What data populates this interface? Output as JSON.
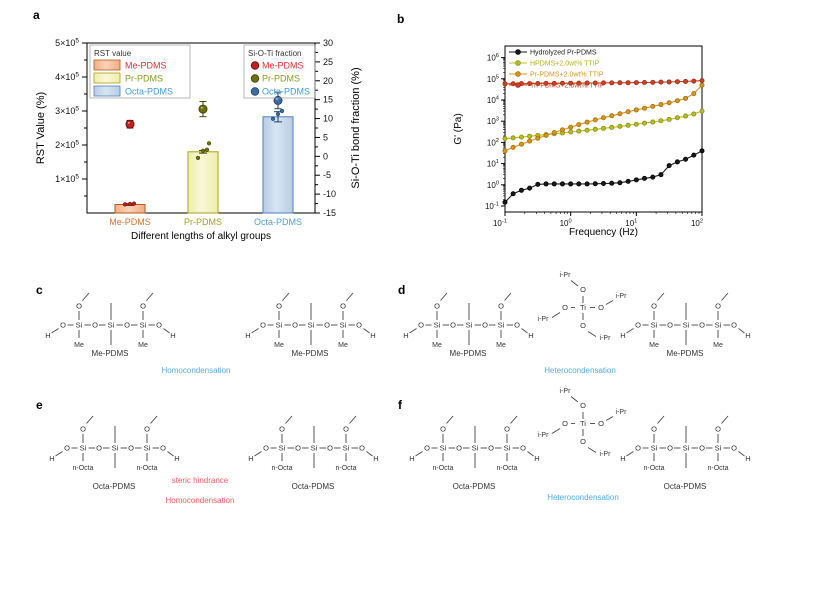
{
  "figure": {
    "panel_labels": {
      "a": "a",
      "b": "b",
      "c": "c",
      "d": "d",
      "e": "e",
      "f": "f"
    }
  },
  "chart_data": [
    {
      "type": "bar",
      "panel": "a",
      "categories": [
        "Me-PDMS",
        "Pr-PDMS",
        "Octa-PDMS"
      ],
      "category_colors": [
        "#d2722e",
        "#9fa020",
        "#4f9fd8"
      ],
      "x_axis": {
        "label": "Different lengths of alkyl groups"
      },
      "left_axis": {
        "label": "RST Value (%)",
        "tick_mantissas": [
          "1",
          "2",
          "3",
          "4",
          "5"
        ],
        "exp": "5",
        "range": [
          0,
          500000
        ]
      },
      "right_axis": {
        "label": "Si-O-Ti bond fraction (%)",
        "ticks": [
          30,
          25,
          20,
          15,
          10,
          5,
          0,
          -5,
          -10,
          -15
        ],
        "range": [
          -15,
          30
        ]
      },
      "bars": {
        "legend_title": "RST value",
        "values": [
          25000,
          180000,
          283000
        ],
        "errors": [
          2500,
          4000,
          15000
        ],
        "fills": [
          "#f2ae81",
          "#eeeeaa",
          "#b7cce4"
        ],
        "fills_light": [
          "#f9d2b8",
          "#f8f8d8",
          "#d8e5f2"
        ],
        "strokes": [
          "#b55a24",
          "#a8a018",
          "#4f81bd"
        ],
        "labels": [
          "Me-PDMS",
          "Pr-PDMS",
          "Octa-PDMS"
        ],
        "label_colors": [
          "#e03030",
          "#8a9a20",
          "#3f9be0"
        ]
      },
      "points": {
        "legend_title": "Si-O-Ti fraction",
        "values_pct": [
          8.5,
          12.5,
          14.8
        ],
        "errors_pct": [
          1.0,
          2.0,
          2.2
        ],
        "fills": [
          "#c02020",
          "#6f7011",
          "#3a6ea5"
        ],
        "strokes": [
          "#6b0f0f",
          "#3f4408",
          "#1f3f66"
        ],
        "labels": [
          "Me-PDMS",
          "Pr-PDMS",
          "Octa-PDMS"
        ],
        "label_colors": [
          "#e03030",
          "#8a9a20",
          "#3f9be0"
        ],
        "replicates_rst": [
          [
            25500,
            26500,
            27500
          ],
          [
            162000,
            183000,
            186000,
            205000
          ],
          [
            277000,
            291000,
            300000
          ]
        ]
      }
    },
    {
      "type": "line",
      "panel": "b",
      "x_label": "Frequency (Hz)",
      "y_label": "G' (Pa)",
      "x_exponents": [
        "-1",
        "0",
        "1",
        "2"
      ],
      "y_exponents": [
        "-1",
        "0",
        "1",
        "2",
        "3",
        "4",
        "5",
        "6"
      ],
      "frequencies": [
        0.1,
        0.133,
        0.178,
        0.237,
        0.316,
        0.422,
        0.562,
        0.75,
        1.0,
        1.33,
        1.78,
        2.37,
        3.16,
        4.22,
        5.62,
        7.5,
        10,
        13.3,
        17.8,
        23.7,
        31.6,
        42.2,
        56.2,
        75,
        100
      ],
      "series": [
        {
          "name": "Hydrolyzed Pr-PDMS",
          "color": "#1a1a1a",
          "stroke": "#000000",
          "label_color": "#1a1a1a",
          "values": [
            0.15,
            0.38,
            0.55,
            0.7,
            1.05,
            1.1,
            1.1,
            1.1,
            1.1,
            1.1,
            1.1,
            1.12,
            1.15,
            1.18,
            1.25,
            1.45,
            1.7,
            2.0,
            2.3,
            3.0,
            8,
            12,
            16,
            25,
            40
          ]
        },
        {
          "name": "HPDMS+2.0wt% TTIP",
          "color": "#b8bc20",
          "stroke": "#8a8e10",
          "label_color": "#b0b414",
          "values": [
            150,
            163,
            178,
            195,
            213,
            233,
            255,
            280,
            310,
            340,
            375,
            415,
            460,
            510,
            570,
            640,
            720,
            810,
            920,
            1050,
            1220,
            1450,
            1750,
            2200,
            3000
          ]
        },
        {
          "name": "Pr-PDMS+2.0wt% TTIP",
          "color": "#d7941e",
          "stroke": "#a86e0a",
          "label_color": "#d7941e",
          "values": [
            40,
            58,
            82,
            115,
            158,
            215,
            290,
            390,
            520,
            690,
            900,
            1150,
            1450,
            1800,
            2250,
            2800,
            3400,
            4100,
            5000,
            6100,
            7400,
            9200,
            12000,
            20000,
            50000
          ]
        },
        {
          "name": "Tri-PDMS+2.0wt% TTIP",
          "color": "#cd4125",
          "stroke": "#992d15",
          "label_color": "#cd4125",
          "values": [
            58000,
            58500,
            59000,
            59500,
            60000,
            60500,
            61000,
            61500,
            62000,
            62500,
            63000,
            63500,
            64000,
            64500,
            65000,
            65500,
            66000,
            67000,
            68000,
            69500,
            71000,
            73000,
            75000,
            78000,
            82000
          ]
        }
      ]
    }
  ],
  "chem": {
    "atoms": {
      "h": "H",
      "o": "O",
      "si": "Si",
      "ti": "Ti",
      "ipr": "i-Pr"
    },
    "panels": [
      {
        "id": "c",
        "sub": "Me",
        "name": "Me-PDMS",
        "captions": [
          {
            "text": "Homocondensation",
            "color": "#55a9e8"
          }
        ]
      },
      {
        "id": "d",
        "sub": "Me",
        "name": "Me-PDMS",
        "captions": [
          {
            "text": "Heterocondensation",
            "color": "#55a9e8"
          }
        ]
      },
      {
        "id": "e",
        "sub": "n-Octa",
        "name": "Octa-PDMS",
        "captions": [
          {
            "text": "steric  hindrance",
            "color": "#f25c5c"
          },
          {
            "text": "Homocondensation",
            "color": "#f25c5c"
          }
        ]
      },
      {
        "id": "f",
        "sub": "n-Octa",
        "name": "Octa-PDMS",
        "captions": [
          {
            "text": "Heterocondensation",
            "color": "#55a9e8"
          }
        ]
      }
    ]
  }
}
